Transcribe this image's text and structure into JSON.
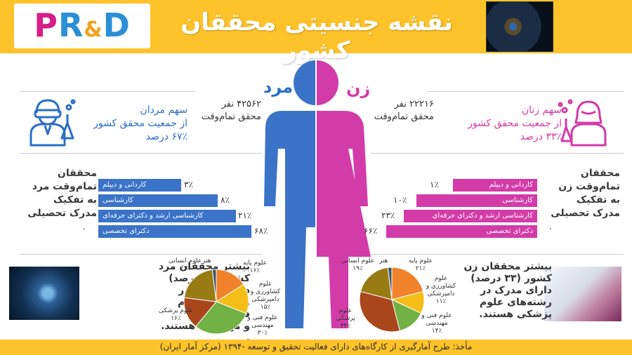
{
  "header": {
    "title": "نقشه جنسیتی محققان کشور",
    "logo": {
      "p": "P",
      "r": "R",
      "amp": "&",
      "d": "D"
    }
  },
  "men": {
    "label": "مرد",
    "count_line1": "۴۲۵۶۲ نفر",
    "count_line2": "محقق تمام‌وقت",
    "share_line1": "سهم مردان",
    "share_line2": "از جمعیت محقق کشور",
    "share_line3": "۶۷٪ درصد",
    "edu_title_line1": "محققان",
    "edu_title_line2": "تمام‌وقت مرد",
    "edu_title_line3": "به تفکیک",
    "edu_title_line4": "مدرک تحصیلی",
    "dot": ".",
    "bars": [
      {
        "label": "کاردانی و دیپلم",
        "pct": "۳٪",
        "value": 3
      },
      {
        "label": "کارشناسی",
        "pct": "۸٪",
        "value": 8
      },
      {
        "label": "کارشناسی ارشد و دکترای حرفه‌ای",
        "pct": "۲۱٪",
        "value": 21
      },
      {
        "label": "دکترای تخصصی",
        "pct": "۶۸٪",
        "value": 68
      }
    ],
    "most_line1": "بیشتر محققان مرد",
    "most_line2": "کشور (۳۰ درصد)",
    "most_line3": "دارای مدرک در",
    "most_line4": "رشته‌های علوم فنی",
    "most_line5": "و مهندسی هستند.",
    "most_dot": ".",
    "pie": [
      {
        "name": "علوم پایه",
        "value": 16,
        "pct": "۱۶٪",
        "color": "#f0822c"
      },
      {
        "name": "علوم کشاورزی و دامپزشکی",
        "value": 15,
        "pct": "۱۵٪",
        "color": "#f5bd17"
      },
      {
        "name": "علوم فنی و مهندسی",
        "value": 30,
        "pct": "۳۰٪",
        "color": "#72b143"
      },
      {
        "name": "علوم پزشکی",
        "value": 16,
        "pct": "۱۶٪",
        "color": "#a9461c"
      },
      {
        "name": "علوم انسانی",
        "value": 21,
        "pct": "۲۱٪",
        "color": "#997b14"
      },
      {
        "name": "هنر",
        "value": 2,
        "pct": "",
        "color": "#3d556b"
      }
    ]
  },
  "women": {
    "label": "زن",
    "count_line1": "۲۲۲۱۶ نفر",
    "count_line2": "محقق تمام‌وقت",
    "share_line1": "سهم زنان",
    "share_line2": "از جمعیت محقق کشور",
    "share_line3": "۳۳٪ درصد",
    "edu_title_line1": "محققان",
    "edu_title_line2": "تمام‌وقت زن",
    "edu_title_line3": "به تفکیک",
    "edu_title_line4": "مدرک تحصیلی",
    "dot": ".",
    "bars": [
      {
        "label": "کاردانی و دیپلم",
        "pct": "۱٪",
        "value": 1
      },
      {
        "label": "کارشناسی",
        "pct": "۱۰٪",
        "value": 10
      },
      {
        "label": "کارشناسی ارشد و دکترای حرفه‌ای",
        "pct": "۲۳٪",
        "value": 23
      },
      {
        "label": "دکترای تخصصی",
        "pct": "۶۶٪",
        "value": 66
      }
    ],
    "most_line1": "بیشتر محققان زن",
    "most_line2": "کشور (۳۳ درصد)",
    "most_line3": "دارای مدرک در",
    "most_line4": "رشته‌های علوم",
    "most_line5": "پزشکی هستند.",
    "pie": [
      {
        "name": "علوم پایه",
        "value": 21,
        "pct": "۲۱٪",
        "color": "#f0822c"
      },
      {
        "name": "علوم کشاورزی و دامپزشکی",
        "value": 11,
        "pct": "۱۱٪",
        "color": "#f5bd17"
      },
      {
        "name": "علوم فنی و مهندسی",
        "value": 14,
        "pct": "۱۴٪",
        "color": "#72b143"
      },
      {
        "name": "علوم پزشکی",
        "value": 33,
        "pct": "۳۳٪",
        "color": "#a9461c"
      },
      {
        "name": "علوم انسانی",
        "value": 19,
        "pct": "۱۹٪",
        "color": "#997b14"
      },
      {
        "name": "هنر",
        "value": 2,
        "pct": "",
        "color": "#3d556b"
      }
    ]
  },
  "footer": {
    "source": "مأخذ: طرح آمارگیری از کارگاه‌های دارای فعالیت تحقیق و توسعه -۱۳۹۴ (مرکز آمار ایران)"
  },
  "colors": {
    "men": "#3a73c8",
    "women": "#d33ba9",
    "banner": "#fec32a"
  }
}
